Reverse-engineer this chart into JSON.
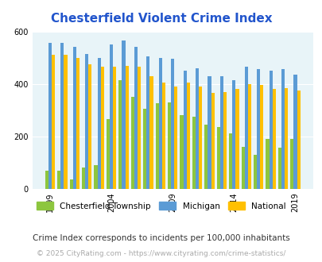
{
  "title": "Chesterfield Violent Crime Index",
  "title_color": "#2255cc",
  "subtitle": "Crime Index corresponds to incidents per 100,000 inhabitants",
  "footer": "© 2025 CityRating.com - https://www.cityrating.com/crime-statistics/",
  "years": [
    1999,
    2000,
    2001,
    2002,
    2003,
    2004,
    2005,
    2006,
    2007,
    2008,
    2009,
    2010,
    2011,
    2012,
    2013,
    2014,
    2015,
    2016,
    2017,
    2018,
    2019
  ],
  "chesterfield": [
    70,
    70,
    35,
    80,
    90,
    265,
    415,
    350,
    305,
    325,
    330,
    280,
    275,
    245,
    235,
    210,
    160,
    130,
    190,
    155,
    190
  ],
  "michigan": [
    555,
    555,
    540,
    515,
    500,
    550,
    565,
    540,
    505,
    500,
    495,
    450,
    460,
    430,
    430,
    415,
    465,
    455,
    450,
    455,
    435
  ],
  "national": [
    510,
    510,
    500,
    475,
    465,
    465,
    470,
    465,
    430,
    405,
    390,
    405,
    390,
    365,
    370,
    380,
    400,
    395,
    380,
    385,
    375
  ],
  "bar_color_chester": "#8dc63f",
  "bar_color_michigan": "#5b9bd5",
  "bar_color_national": "#ffc000",
  "bg_color": "#e8f4f8",
  "ylim": [
    0,
    600
  ],
  "yticks": [
    0,
    200,
    400,
    600
  ],
  "xlabel_years": [
    1999,
    2004,
    2009,
    2014,
    2019
  ]
}
